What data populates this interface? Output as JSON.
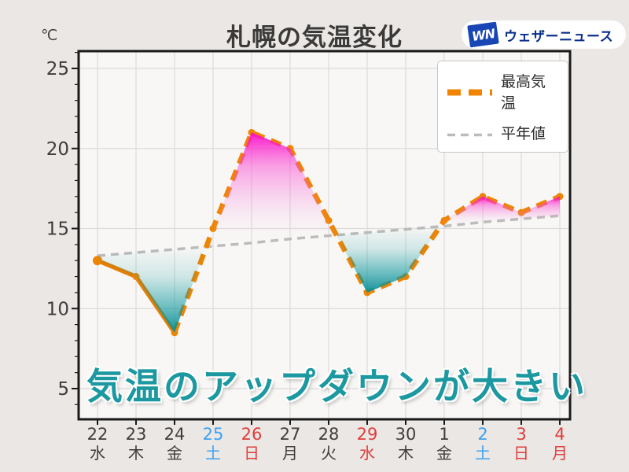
{
  "header": {
    "title": "札幌の気温変化",
    "unit": "℃"
  },
  "logo": {
    "mark": "WN",
    "name": "ウェザーニュース"
  },
  "annotation": {
    "text": "気温のアップダウンが大きい"
  },
  "colors": {
    "page_bg": "#eae7e4",
    "plot_bg": "#f8f7f5",
    "grid": "#dcdada",
    "frame": "#1a1a1a",
    "tick_text": "#3f3c3b",
    "weekday": "#3f3c3b",
    "saturday": "#3fa0f0",
    "sunday": "#e03c3c",
    "max_line": "#ee8403",
    "normal_line": "#bbbbbb",
    "fill_above": "#fa0bc8",
    "fill_below": "#0f9aa0",
    "annotation_teal": "#1c98a0"
  },
  "chart_data": {
    "type": "line",
    "title": "札幌の気温変化",
    "ylabel": "℃",
    "ylim": [
      3.5,
      26
    ],
    "grid": true,
    "legend_position": "top-right",
    "y_ticks": [
      25,
      20,
      15,
      10,
      5
    ],
    "x_categories": [
      {
        "date": "22",
        "day": "水",
        "color_key": "weekday"
      },
      {
        "date": "23",
        "day": "木",
        "color_key": "weekday"
      },
      {
        "date": "24",
        "day": "金",
        "color_key": "weekday"
      },
      {
        "date": "25",
        "day": "土",
        "color_key": "saturday"
      },
      {
        "date": "26",
        "day": "日",
        "color_key": "sunday"
      },
      {
        "date": "27",
        "day": "月",
        "color_key": "weekday"
      },
      {
        "date": "28",
        "day": "火",
        "color_key": "weekday"
      },
      {
        "date": "29",
        "day": "水",
        "color_key": "sunday"
      },
      {
        "date": "30",
        "day": "木",
        "color_key": "weekday"
      },
      {
        "date": "1",
        "day": "金",
        "color_key": "weekday"
      },
      {
        "date": "2",
        "day": "土",
        "color_key": "saturday"
      },
      {
        "date": "3",
        "day": "日",
        "color_key": "sunday"
      },
      {
        "date": "4",
        "day": "月",
        "color_key": "sunday"
      }
    ],
    "series": [
      {
        "name": "最高気温",
        "values": [
          13,
          12,
          8.5,
          15,
          21,
          20,
          15.5,
          11,
          12,
          15.5,
          17,
          16,
          17
        ],
        "style": "dashed",
        "solid_until_index": 2,
        "color": "#ee8403"
      },
      {
        "name": "平年値",
        "values": [
          13.3,
          13.5,
          13.7,
          13.9,
          14.1,
          14.35,
          14.55,
          14.75,
          14.95,
          15.15,
          15.4,
          15.6,
          15.8
        ],
        "style": "dashed",
        "color": "#bbbbbb"
      }
    ]
  }
}
